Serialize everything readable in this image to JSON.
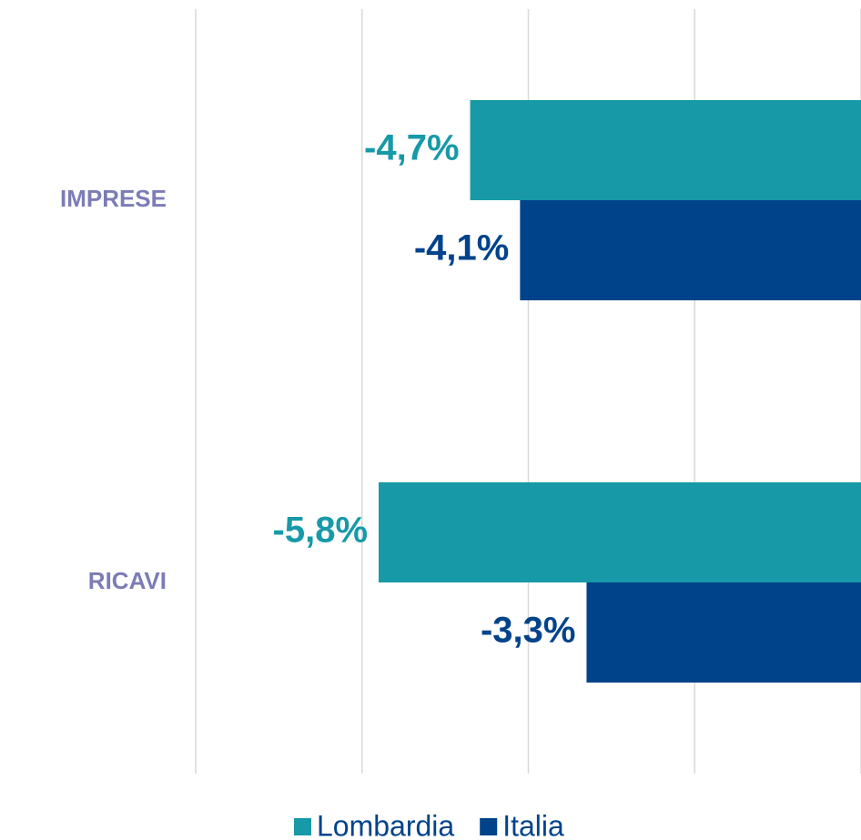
{
  "chart_data": {
    "type": "hbar",
    "categories": [
      "IMPRESE",
      "RICAVI"
    ],
    "series": [
      {
        "name": "Lombardia",
        "color": "#1799a8",
        "values": [
          -4.7,
          -5.8
        ],
        "value_labels": [
          "-4,7%",
          "-5,8%"
        ]
      },
      {
        "name": "Italia",
        "color": "#00438a",
        "values": [
          -4.1,
          -3.3
        ],
        "value_labels": [
          "-4,1%",
          "-3,3%"
        ]
      }
    ],
    "xlim": [
      -8,
      0
    ],
    "xticks": [
      -8,
      -6,
      -4,
      -2,
      0
    ],
    "grid": true,
    "legend": "bottom"
  }
}
